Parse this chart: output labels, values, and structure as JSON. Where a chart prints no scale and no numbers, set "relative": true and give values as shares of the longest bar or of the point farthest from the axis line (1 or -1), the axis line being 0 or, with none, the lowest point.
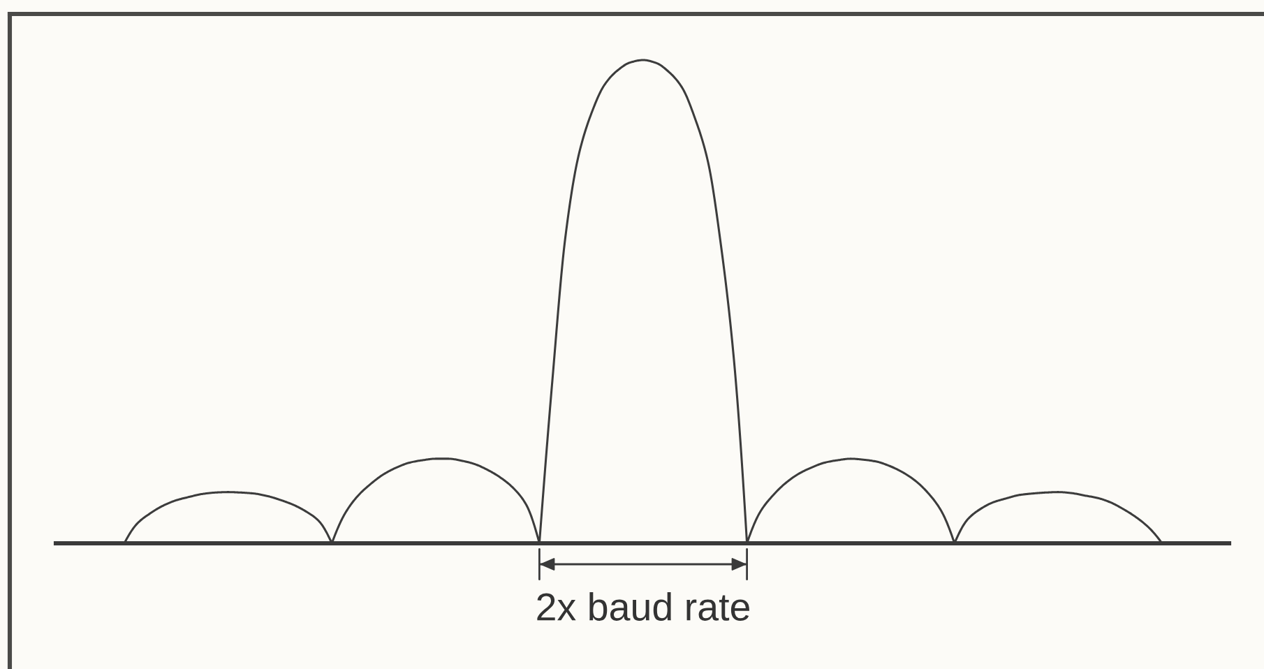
{
  "chart_data": {
    "type": "line",
    "relative": true,
    "categories": [
      null,
      null,
      null,
      null,
      null,
      null,
      null,
      null,
      null,
      null,
      null,
      null,
      null,
      null,
      null,
      null,
      null,
      null,
      null,
      null,
      null,
      null,
      null,
      null,
      null,
      null,
      null,
      null,
      null,
      null,
      null,
      null,
      null,
      null,
      null,
      null,
      null,
      null,
      null,
      null,
      null,
      null,
      null,
      null,
      null,
      null,
      null,
      null,
      null,
      null,
      null,
      null,
      null,
      null,
      null,
      null,
      null,
      null,
      null,
      null,
      null,
      null,
      null,
      null,
      null,
      null,
      null,
      null,
      null,
      null,
      null,
      null,
      null,
      null,
      null,
      null,
      null,
      null,
      null,
      null,
      null
    ],
    "series": [
      {
        "color": "#3c3c3c",
        "values": [
          0,
          0.041,
          0.062,
          0.078,
          0.089,
          0.096,
          0.102,
          0.105,
          0.106,
          0.105,
          0.103,
          0.098,
          0.09,
          0.08,
          0.066,
          0.046,
          0,
          0.061,
          0.098,
          0.123,
          0.143,
          0.157,
          0.167,
          0.172,
          0.175,
          0.175,
          0.171,
          0.164,
          0.152,
          0.136,
          0.114,
          0.079,
          0,
          0.337,
          0.633,
          0.8,
          0.889,
          0.948,
          0.978,
          0.995,
          1.0,
          0.994,
          0.975,
          0.943,
          0.879,
          0.789,
          0.616,
          0.379,
          0,
          0.064,
          0.099,
          0.125,
          0.144,
          0.157,
          0.167,
          0.172,
          0.175,
          0.173,
          0.169,
          0.16,
          0.147,
          0.129,
          0.103,
          0.066,
          0,
          0.049,
          0.071,
          0.085,
          0.093,
          0.1,
          0.103,
          0.105,
          0.106,
          0.104,
          0.099,
          0.094,
          0.085,
          0.071,
          0.054,
          0.032,
          0
        ]
      }
    ],
    "annotations": [
      "2x baud rate"
    ]
  }
}
